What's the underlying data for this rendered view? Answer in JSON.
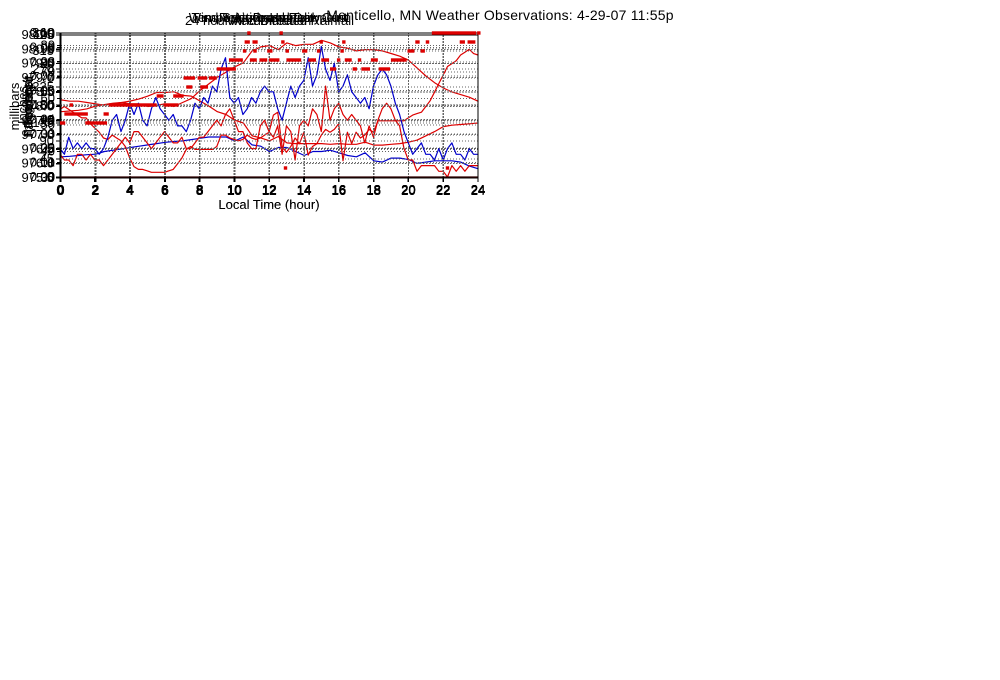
{
  "page": {
    "title": "Monticello, MN Weather Observations: 4-29-07 11:55p"
  },
  "colors": {
    "red": "#dd0000",
    "blue": "#0000cc",
    "grid": "#666666",
    "frame": "#000000",
    "text": "#000000",
    "background": "#ffffff"
  },
  "chart_data": [
    {
      "type": "line",
      "title": "Temperature and Dewpoint",
      "ylabel": "Fahrenheit",
      "xlabel": null,
      "xlim": [
        0,
        24
      ],
      "xticks": [
        0,
        2,
        4,
        6,
        8,
        10,
        12,
        14,
        16,
        18,
        20,
        22,
        24
      ],
      "ylim": [
        30,
        84
      ],
      "yticks": [
        30,
        40,
        50,
        60,
        70,
        80
      ],
      "ydecimals": 0,
      "series": [
        {
          "name": "temperature",
          "color": "red",
          "x_start": 0,
          "x_step": 0.5,
          "values": [
            59.5,
            59,
            59,
            58.5,
            58,
            57.5,
            58,
            58.5,
            58,
            58,
            57,
            57.5,
            58,
            57,
            58.5,
            60,
            63,
            65.5,
            68,
            70,
            72,
            73.5,
            78,
            79.5,
            80,
            78.5,
            81,
            80,
            80.5,
            80.5,
            82,
            81,
            79.5,
            79,
            78,
            78.5,
            78.5,
            78,
            77,
            76,
            74.5,
            71.5,
            68.5,
            66,
            64,
            62.5,
            61.5,
            60.5,
            59
          ]
        },
        {
          "name": "dewpoint",
          "color": "blue",
          "x_start": 0,
          "x_step": 0.5,
          "values": [
            38,
            38.2,
            38.5,
            38.8,
            39,
            40,
            40.5,
            41,
            41.5,
            42,
            42.5,
            43,
            43.5,
            43.8,
            44,
            44.5,
            45,
            45.5,
            45.5,
            45.5,
            44,
            45.5,
            42.5,
            42,
            40,
            41.5,
            41.5,
            40,
            38.5,
            40,
            40,
            40.5,
            39.5,
            38.5,
            38,
            39.5,
            36.5,
            36,
            37.5,
            37.5,
            37,
            35.5,
            36,
            36.5,
            36.5,
            36.5,
            36,
            34.5,
            33.5
          ]
        }
      ]
    },
    {
      "type": "line",
      "title": "Air Pressure",
      "ylabel": "millibars",
      "xlabel": null,
      "xlim": [
        0,
        24
      ],
      "xticks": [
        0,
        2,
        4,
        6,
        8,
        10,
        12,
        14,
        16,
        18,
        20,
        22,
        24
      ],
      "ylim": [
        975.5,
        980.5
      ],
      "yticks": [
        975.5,
        976.0,
        976.5,
        977.0,
        977.5,
        978.0,
        978.5,
        979.0,
        979.5,
        980.0,
        980.5
      ],
      "ydecimals": 1,
      "series": [
        {
          "name": "pressure",
          "color": "red",
          "x_start": 0,
          "x_step": 0.25,
          "values": [
            977.9,
            978.0,
            977.9,
            977.8,
            977.7,
            977.6,
            977.6,
            977.4,
            977.25,
            977.1,
            976.9,
            976.85,
            977.0,
            976.9,
            976.8,
            976.6,
            976.2,
            975.9,
            975.8,
            975.8,
            975.75,
            975.7,
            975.7,
            975.7,
            975.7,
            975.75,
            975.8,
            976.0,
            976.2,
            976.5,
            976.6,
            976.5,
            976.5,
            976.5,
            976.5,
            976.5,
            976.6,
            977.0,
            977.0,
            976.9,
            976.85,
            976.8,
            976.85,
            977.0,
            976.9,
            976.85,
            976.9,
            977.0,
            977.1,
            977.7,
            977.8,
            976.6,
            976.4,
            976.6,
            976.9,
            976.7,
            977.1,
            976.3,
            976.6,
            976.7,
            977.0,
            977.2,
            977.1,
            977.2,
            977.4,
            976.1,
            977.1,
            976.7,
            977.1,
            976.9,
            977.0,
            977.2,
            977.1,
            977.5,
            977.5,
            977.5,
            977.5,
            977.5,
            977.5,
            977.5,
            977.6,
            977.7,
            977.75,
            977.8,
            978.0,
            978.2,
            978.5,
            978.8,
            979.1,
            979.4,
            979.5,
            979.6,
            979.8,
            979.9,
            980.0,
            979.85,
            979.8
          ]
        }
      ]
    },
    {
      "type": "line",
      "title": "Relative Humidity",
      "ylabel": "Percent",
      "xlabel": null,
      "xlim": [
        0,
        24
      ],
      "xticks": [
        0,
        2,
        4,
        6,
        8,
        10,
        12,
        14,
        16,
        18,
        20,
        22,
        24
      ],
      "ylim": [
        0,
        100
      ],
      "yticks": [
        0,
        10,
        20,
        30,
        40,
        50,
        60,
        70,
        80,
        90,
        100
      ],
      "ydecimals": 0,
      "series": [
        {
          "name": "humidity",
          "color": "red",
          "x_start": 0,
          "x_step": 0.5,
          "values": [
            46,
            46.5,
            47,
            48,
            50,
            51,
            52,
            52.5,
            53.5,
            55,
            57,
            59.5,
            59.5,
            60,
            57.5,
            57,
            53.5,
            50,
            46,
            44,
            40,
            38,
            29,
            27.5,
            25.5,
            28.5,
            24,
            23.5,
            23.5,
            23.5,
            23.5,
            23,
            23.5,
            23,
            23,
            24.5,
            22.5,
            22.5,
            23,
            23.5,
            24.5,
            26,
            29,
            32,
            35.5,
            36.5,
            37,
            37.5,
            38
          ]
        }
      ]
    },
    {
      "type": "line",
      "title": "Wind Speed and Peak Gust",
      "ylabel": "miles/hour",
      "xlabel": "Local Time (hour)",
      "xlim": [
        0,
        24
      ],
      "xticks": [
        0,
        2,
        4,
        6,
        8,
        10,
        12,
        14,
        16,
        18,
        20,
        22,
        24
      ],
      "ylim": [
        0,
        25
      ],
      "yticks": [
        0,
        5,
        10,
        15,
        20,
        25
      ],
      "ydecimals": 0,
      "series": [
        {
          "name": "peak-gust",
          "color": "blue",
          "x_start": 0,
          "x_step": 0.25,
          "values": [
            5,
            4,
            7,
            5,
            6,
            5,
            6,
            5,
            5,
            4,
            5,
            7,
            10,
            11,
            8,
            10,
            13,
            11,
            13,
            10,
            9,
            12,
            14,
            12,
            11,
            10,
            11,
            9,
            9,
            8,
            10,
            13,
            12,
            14,
            13,
            16,
            15,
            19,
            21,
            14,
            13,
            14,
            11,
            12,
            14,
            13,
            15,
            16,
            15,
            15,
            12,
            10,
            13,
            16,
            14,
            16,
            17,
            21,
            16,
            18,
            23,
            19,
            17,
            20,
            15,
            16,
            18,
            15,
            14,
            13,
            14,
            12,
            16,
            18,
            19,
            18,
            16,
            13,
            11,
            8,
            6,
            4,
            5,
            6,
            4,
            4,
            3,
            5,
            3,
            5,
            6,
            4,
            4,
            3,
            5,
            4,
            4
          ]
        },
        {
          "name": "wind-speed",
          "color": "red",
          "x_start": 0,
          "x_step": 0.25,
          "values": [
            4,
            3,
            3,
            2,
            4,
            4,
            3,
            4,
            3,
            3,
            2,
            3,
            4,
            5,
            6,
            7,
            6,
            8,
            8,
            7,
            6,
            5,
            6,
            7,
            8,
            7,
            6,
            6,
            7,
            5,
            5,
            6,
            7,
            7,
            8,
            9,
            10,
            9,
            11,
            12,
            10,
            8,
            8,
            6,
            5,
            5,
            9,
            10,
            8,
            7,
            9,
            4,
            9,
            8,
            3,
            9,
            10,
            9,
            12,
            11,
            8,
            16,
            10,
            12,
            13,
            11,
            10,
            11,
            10,
            9,
            6,
            9,
            7,
            10,
            12,
            13,
            12,
            10,
            9,
            5,
            3,
            3,
            1,
            2,
            2,
            2,
            2,
            1,
            1,
            0,
            2,
            1,
            2,
            1,
            2,
            2,
            2
          ]
        }
      ]
    },
    {
      "type": "line",
      "title": "24 hour Accumulated Rainfall",
      "ylabel": "Inches",
      "xlabel": null,
      "xlim": [
        0,
        24
      ],
      "xticks": [
        0,
        2,
        4,
        6,
        8,
        10,
        12,
        14,
        16,
        18,
        20,
        22,
        24
      ],
      "ylim": [
        0,
        0.1
      ],
      "yticks": [
        0,
        0.01,
        0.02,
        0.03,
        0.04,
        0.05,
        0.06,
        0.07,
        0.08,
        0.09,
        0.1
      ],
      "ydecimals": 2,
      "series": [
        {
          "name": "rainfall",
          "color": "red",
          "x_start": 0,
          "x_step": 24,
          "values": [
            0,
            0
          ]
        }
      ]
    },
    {
      "type": "scatter",
      "title": "Wind Direction",
      "ylabel": "degrees",
      "xlabel": "Local Time (hour)",
      "xlim": [
        0,
        24
      ],
      "xticks": [
        0,
        2,
        4,
        6,
        8,
        10,
        12,
        14,
        16,
        18,
        20,
        22,
        24
      ],
      "ylim": [
        0,
        360
      ],
      "yticks": [
        0,
        45,
        90,
        135,
        180,
        225,
        270,
        315,
        360
      ],
      "ydecimals": 0,
      "series": [
        {
          "name": "wind-direction",
          "color": "red",
          "segments": [
            [
              0.0,
              0.3,
              135
            ],
            [
              0.25,
              1.6,
              157.5
            ],
            [
              0.55,
              0.65,
              180
            ],
            [
              1.45,
              2.7,
              135
            ],
            [
              2.5,
              2.8,
              157.5
            ],
            [
              2.8,
              5.55,
              180
            ],
            [
              5.55,
              5.95,
              202.5
            ],
            [
              5.95,
              6.8,
              180
            ],
            [
              6.5,
              7.1,
              202.5
            ],
            [
              7.1,
              7.75,
              247.5
            ],
            [
              7.25,
              7.6,
              225
            ],
            [
              7.9,
              8.45,
              247.5
            ],
            [
              8.05,
              8.5,
              225
            ],
            [
              8.55,
              9.0,
              247.5
            ],
            [
              9.0,
              10.1,
              270
            ],
            [
              9.7,
              10.5,
              292.5
            ],
            [
              10.5,
              10.55,
              315
            ],
            [
              10.6,
              10.9,
              337.5
            ],
            [
              10.75,
              10.85,
              360
            ],
            [
              10.9,
              11.3,
              292.5
            ],
            [
              11.05,
              11.35,
              337.5
            ],
            [
              11.1,
              11.15,
              315
            ],
            [
              11.45,
              11.9,
              292.5
            ],
            [
              11.9,
              12.2,
              315
            ],
            [
              12.0,
              12.6,
              292.5
            ],
            [
              12.6,
              12.7,
              360
            ],
            [
              12.7,
              12.8,
              337.5
            ],
            [
              12.85,
              12.9,
              22.5
            ],
            [
              12.95,
              13.05,
              315
            ],
            [
              13.0,
              13.85,
              292.5
            ],
            [
              13.9,
              14.2,
              315
            ],
            [
              14.25,
              14.7,
              292.5
            ],
            [
              14.75,
              14.85,
              315
            ],
            [
              14.9,
              15.0,
              337.5
            ],
            [
              15.0,
              15.45,
              292.5
            ],
            [
              15.5,
              15.85,
              270
            ],
            [
              15.9,
              16.05,
              292.5
            ],
            [
              16.1,
              16.15,
              315
            ],
            [
              16.2,
              16.3,
              337.5
            ],
            [
              16.35,
              16.75,
              292.5
            ],
            [
              16.8,
              17.05,
              270
            ],
            [
              17.1,
              17.25,
              292.5
            ],
            [
              17.3,
              17.8,
              270
            ],
            [
              17.85,
              18.25,
              292.5
            ],
            [
              18.3,
              18.95,
              270
            ],
            [
              19.0,
              19.9,
              292.5
            ],
            [
              19.95,
              20.35,
              315
            ],
            [
              20.4,
              20.65,
              337.5
            ],
            [
              20.7,
              20.95,
              315
            ],
            [
              21.0,
              21.2,
              337.5
            ],
            [
              21.35,
              23.9,
              360
            ],
            [
              22.15,
              22.25,
              22.5
            ],
            [
              22.95,
              23.25,
              337.5
            ],
            [
              23.4,
              23.85,
              337.5
            ],
            [
              23.95,
              24.0,
              360
            ]
          ]
        }
      ]
    }
  ]
}
